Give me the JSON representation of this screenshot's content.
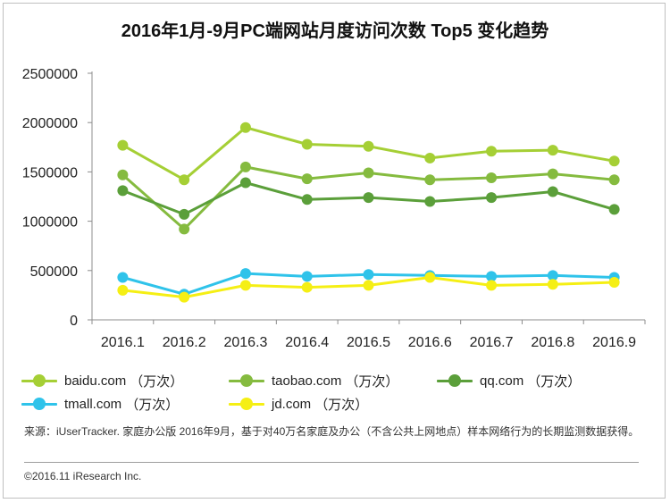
{
  "title": "2016年1月-9月PC端网站月度访问次数 Top5 变化趋势",
  "chart_data": {
    "type": "line",
    "title": "2016年1月-9月PC端网站月度访问次数 Top5 变化趋势",
    "categories": [
      "2016.1",
      "2016.2",
      "2016.3",
      "2016.4",
      "2016.5",
      "2016.6",
      "2016.7",
      "2016.8",
      "2016.9"
    ],
    "ylim": [
      0,
      2500000
    ],
    "yticks": [
      "0",
      "500000",
      "1000000",
      "1500000",
      "2000000",
      "2500000"
    ],
    "grid": false,
    "legend_position": "bottom",
    "series": [
      {
        "name": "baidu.com",
        "unit": "（万次）",
        "color": "#a5cf35",
        "values": [
          1770000,
          1420000,
          1950000,
          1780000,
          1760000,
          1640000,
          1710000,
          1720000,
          1610000
        ]
      },
      {
        "name": "taobao.com",
        "unit": "（万次）",
        "color": "#85bb3f",
        "values": [
          1470000,
          920000,
          1550000,
          1430000,
          1490000,
          1420000,
          1440000,
          1480000,
          1420000
        ]
      },
      {
        "name": "qq.com",
        "unit": "（万次）",
        "color": "#5b9f3a",
        "values": [
          1310000,
          1070000,
          1390000,
          1220000,
          1240000,
          1200000,
          1240000,
          1300000,
          1120000
        ]
      },
      {
        "name": "tmall.com",
        "unit": "（万次）",
        "color": "#2fc3ea",
        "values": [
          430000,
          260000,
          470000,
          440000,
          460000,
          450000,
          440000,
          450000,
          430000
        ]
      },
      {
        "name": "jd.com",
        "unit": "（万次）",
        "color": "#f5ef14",
        "values": [
          300000,
          230000,
          350000,
          330000,
          350000,
          430000,
          350000,
          360000,
          380000
        ]
      }
    ]
  },
  "source_note": "来源：iUserTracker. 家庭办公版 2016年9月，基于对40万名家庭及办公（不含公共上网地点）样本网络行为的长期监测数据获得。",
  "copyright": "©2016.11 iResearch Inc."
}
